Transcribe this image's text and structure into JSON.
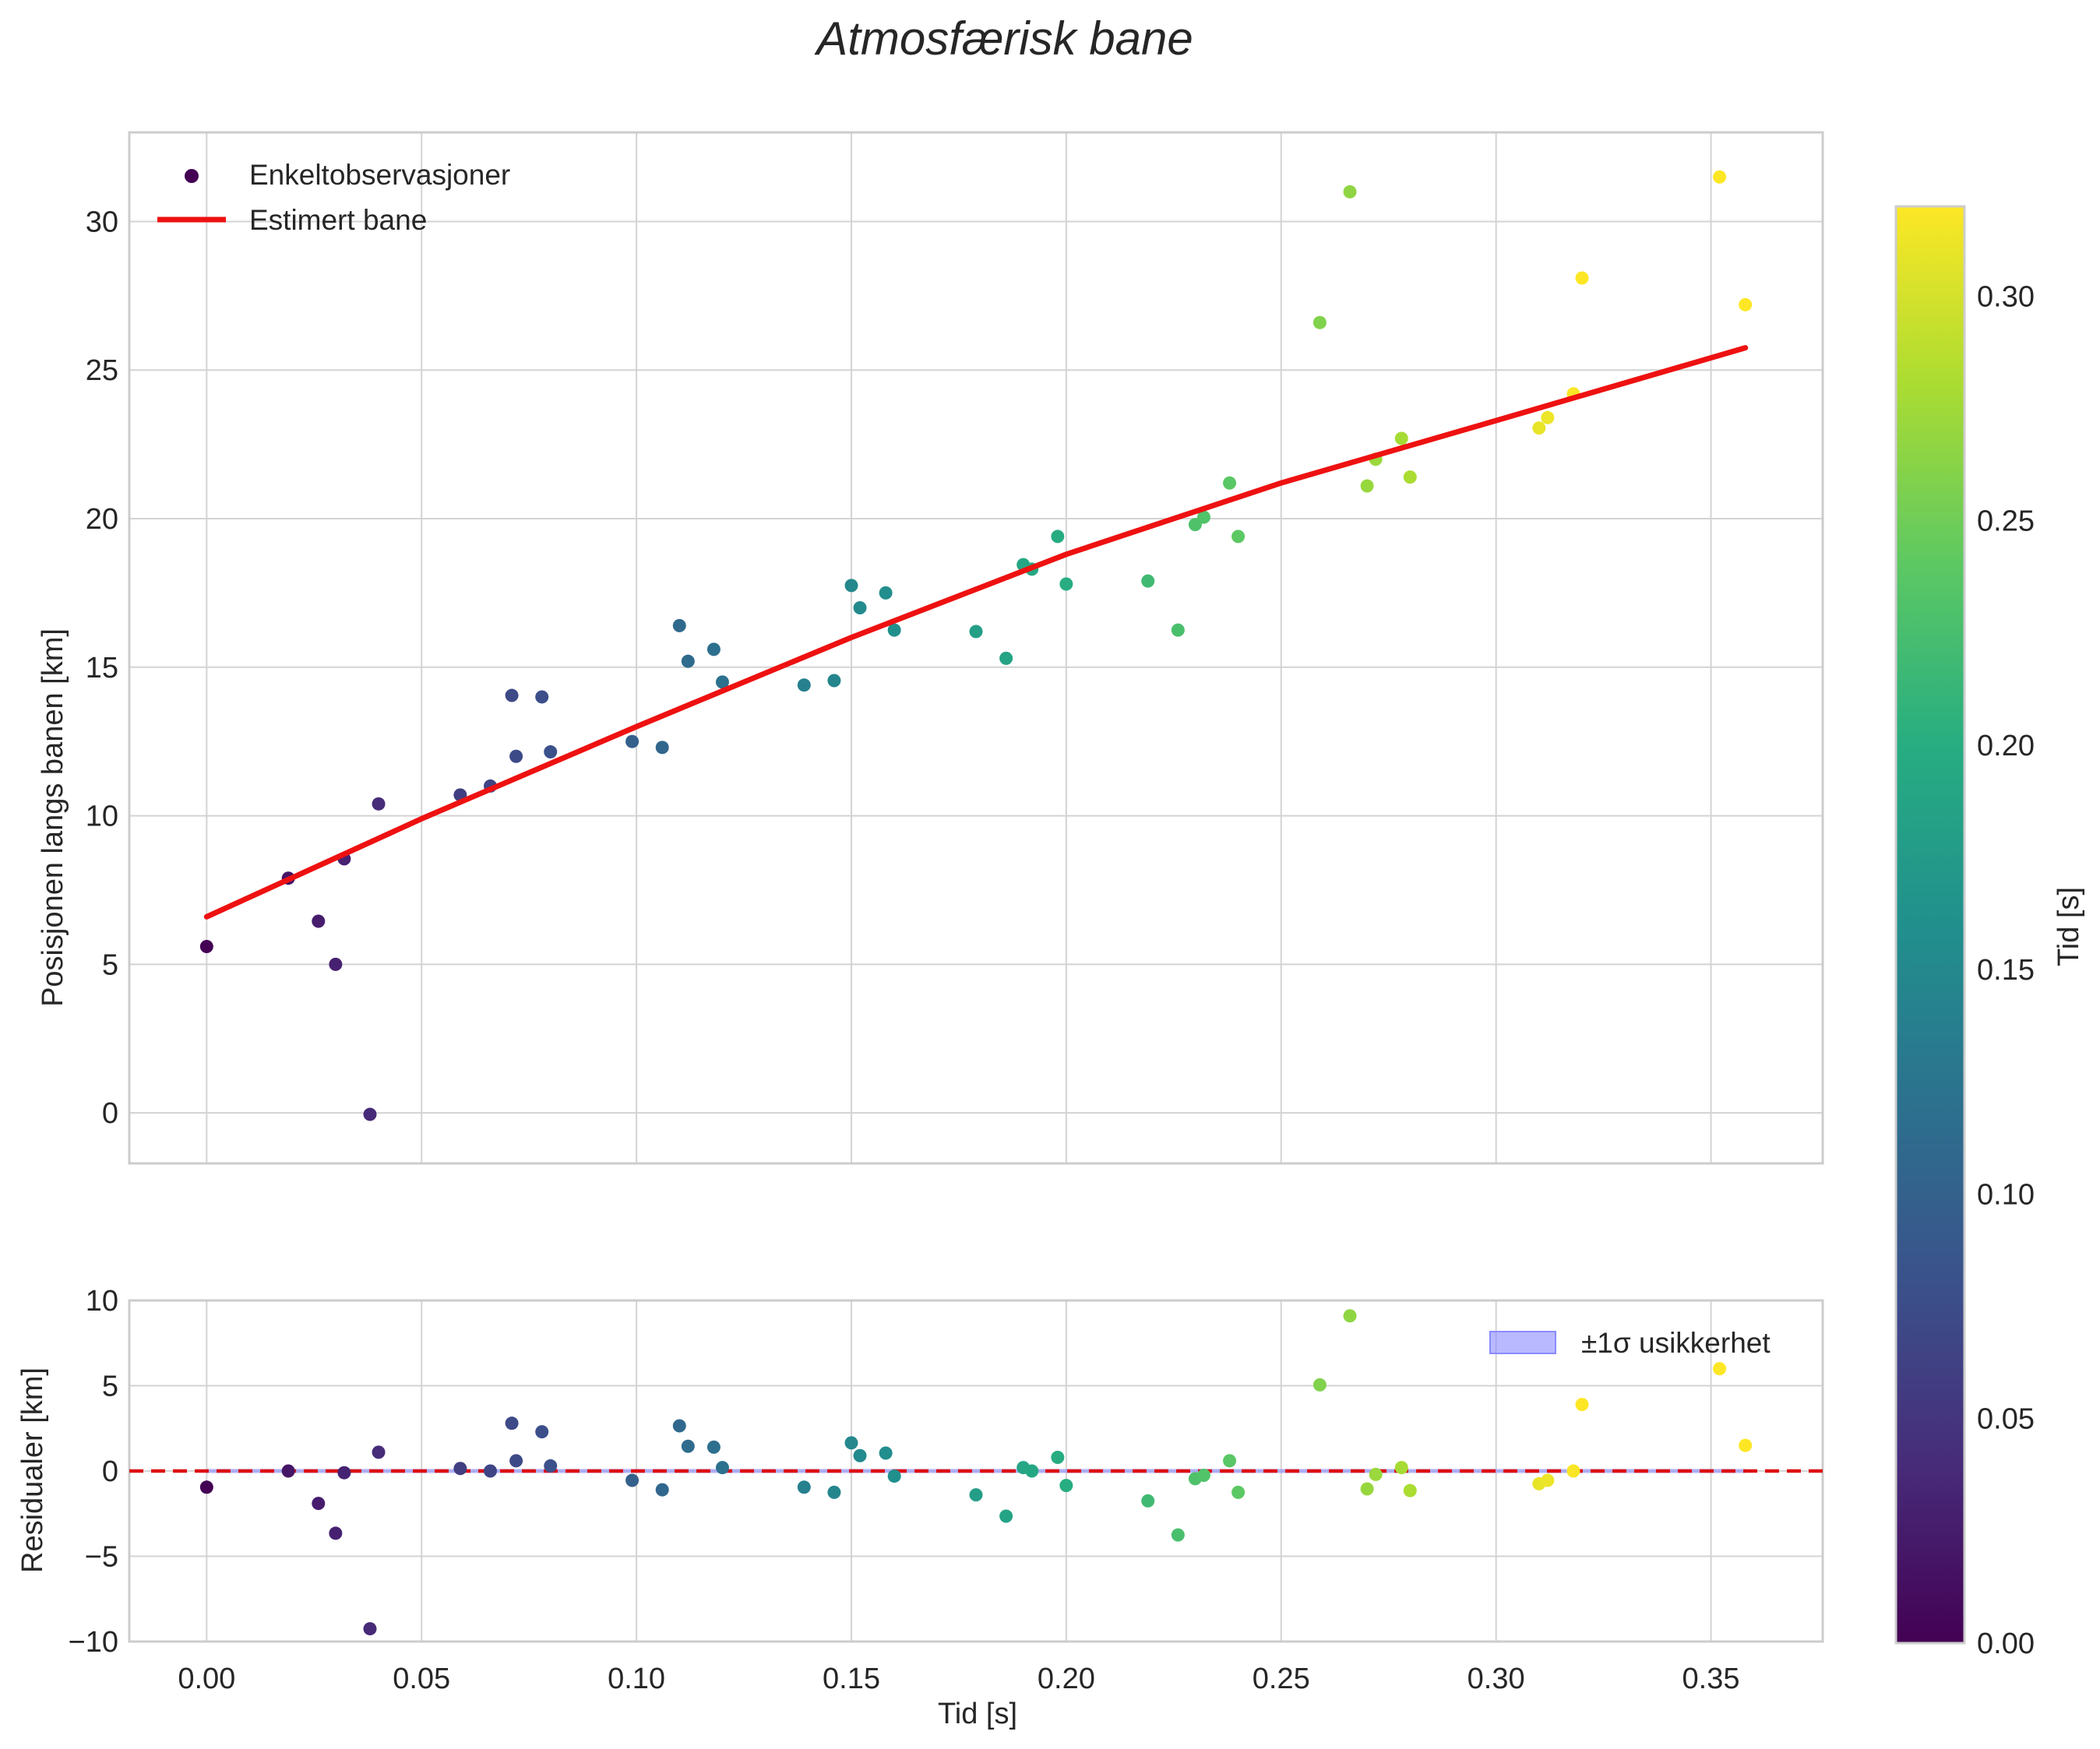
{
  "chart_data": {
    "type": "scatter",
    "title": "Atmosfærisk bane",
    "colormap": [
      "#440154",
      "#472c7a",
      "#3b518b",
      "#2c718e",
      "#21908d",
      "#27ad81",
      "#5cc863",
      "#aadc32",
      "#fde725"
    ],
    "colorbar": {
      "label": "Tid [s]",
      "range": [
        0.0,
        0.32
      ],
      "ticks": [
        0.0,
        0.05,
        0.1,
        0.15,
        0.2,
        0.25,
        0.3
      ],
      "tick_labels": [
        "0.00",
        "0.05",
        "0.10",
        "0.15",
        "0.20",
        "0.25",
        "0.30"
      ]
    },
    "xlabel": "Tid [s]",
    "xlim": [
      -0.018,
      0.376
    ],
    "xticks": [
      0.0,
      0.05,
      0.1,
      0.15,
      0.2,
      0.25,
      0.3,
      0.35
    ],
    "xtick_labels": [
      "0.00",
      "0.05",
      "0.10",
      "0.15",
      "0.20",
      "0.25",
      "0.30",
      "0.35"
    ],
    "observations": {
      "t": [
        0.0,
        0.019,
        0.026,
        0.03,
        0.032,
        0.038,
        0.04,
        0.059,
        0.066,
        0.071,
        0.072,
        0.078,
        0.08,
        0.099,
        0.106,
        0.11,
        0.112,
        0.118,
        0.12,
        0.139,
        0.146,
        0.15,
        0.152,
        0.158,
        0.16,
        0.179,
        0.186,
        0.19,
        0.192,
        0.198,
        0.2,
        0.219,
        0.226,
        0.23,
        0.232,
        0.238,
        0.24,
        0.259,
        0.266,
        0.27,
        0.272,
        0.278,
        0.28,
        0.31,
        0.312,
        0.318,
        0.32,
        0.352,
        0.358
      ],
      "pos": [
        5.6,
        7.9,
        6.45,
        5.0,
        8.55,
        -0.05,
        10.4,
        10.7,
        11.0,
        14.05,
        12.0,
        14.0,
        12.15,
        12.5,
        12.3,
        16.4,
        15.2,
        15.6,
        14.5,
        14.4,
        14.55,
        17.75,
        17.0,
        17.5,
        16.25,
        16.2,
        15.3,
        18.45,
        18.3,
        19.4,
        17.8,
        17.9,
        16.25,
        19.8,
        20.05,
        21.2,
        19.4,
        26.6,
        31.0,
        21.1,
        22.0,
        22.7,
        21.4,
        23.05,
        23.4,
        24.2,
        28.1,
        31.5,
        27.2
      ],
      "residual": [
        -0.95,
        0.0,
        -1.9,
        -3.65,
        -0.1,
        -9.25,
        1.1,
        0.15,
        0.0,
        2.8,
        0.6,
        2.3,
        0.3,
        -0.55,
        -1.1,
        2.65,
        1.45,
        1.4,
        0.2,
        -0.95,
        -1.25,
        1.65,
        0.9,
        1.05,
        -0.3,
        -1.4,
        -2.65,
        0.2,
        0.0,
        0.8,
        -0.85,
        -1.75,
        -3.75,
        -0.45,
        -0.25,
        0.6,
        -1.25,
        5.05,
        9.1,
        -1.05,
        -0.2,
        0.2,
        -1.15,
        -0.75,
        -0.55,
        0.0,
        3.9,
        6.0,
        1.5
      ]
    },
    "top_panel": {
      "ylabel": "Posisjonen langs banen [km]",
      "ylim": [
        -1.7,
        33.0
      ],
      "yticks": [
        0,
        5,
        10,
        15,
        20,
        25,
        30
      ],
      "ytick_labels": [
        "0",
        "5",
        "10",
        "15",
        "20",
        "25",
        "30"
      ],
      "fit_line": {
        "t": [
          0.0,
          0.05,
          0.1,
          0.15,
          0.2,
          0.25,
          0.3,
          0.358
        ],
        "pos": [
          6.6,
          9.9,
          13.0,
          16.0,
          18.8,
          21.2,
          23.3,
          25.75
        ]
      }
    },
    "bottom_panel": {
      "ylabel": "Residualer [km]",
      "ylim": [
        -10.0,
        10.0
      ],
      "yticks": [
        -10,
        -5,
        0,
        5,
        10
      ],
      "ytick_labels": [
        "−10",
        "−5",
        "0",
        "5",
        "10"
      ],
      "sigma_band": 0.12,
      "zero_line": 0
    },
    "legend_top": {
      "position": "upper-left",
      "items": [
        {
          "label": "Enkeltobservasjoner",
          "kind": "marker",
          "color": "#440154"
        },
        {
          "label": "Estimert bane",
          "kind": "line",
          "color": "#ee1111"
        }
      ]
    },
    "legend_bottom": {
      "position": "upper-right",
      "items": [
        {
          "label": "±1σ usikkerhet",
          "kind": "patch",
          "color": "#8b8bff"
        }
      ]
    },
    "colors": {
      "fit": "#ee1111",
      "zero_line": "#dd1111",
      "band": "#8b8bff",
      "grid": "#d3d3d3",
      "spine": "#cccccc"
    }
  }
}
